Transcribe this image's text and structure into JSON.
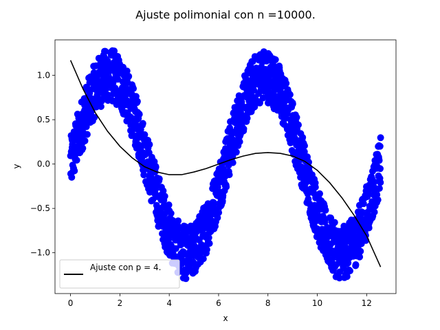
{
  "chart_data": {
    "type": "scatter",
    "title": "Ajuste polimonial con n =10000.",
    "xlabel": "x",
    "ylabel": "y",
    "xlim": [
      -0.63,
      13.19
    ],
    "ylim": [
      -1.46,
      1.4
    ],
    "xticks": [
      0,
      2,
      4,
      6,
      8,
      10,
      12
    ],
    "xtick_labels": [
      "0",
      "2",
      "4",
      "6",
      "8",
      "10",
      "12"
    ],
    "yticks": [
      -1.0,
      -0.5,
      0.0,
      0.5,
      1.0
    ],
    "ytick_labels": [
      "−1.0",
      "−0.5",
      "0.0",
      "0.5",
      "1.0"
    ],
    "grid": false,
    "legend": {
      "position": "lower-left",
      "entries": [
        "Ajuste con p = 4."
      ]
    },
    "series": [
      {
        "kind": "scatter",
        "color": "#0000ff",
        "x_range": [
          0,
          12.566
        ],
        "n": 10000,
        "envelope": "sin(x) ± 0.3"
      },
      {
        "kind": "line",
        "name": "Ajuste con p = 4.",
        "color": "#000000",
        "x": [
          0,
          0.5,
          1,
          1.5,
          2,
          2.5,
          3,
          3.5,
          4,
          4.5,
          5,
          5.5,
          6,
          6.5,
          7,
          7.5,
          8,
          8.5,
          9,
          9.5,
          10,
          10.5,
          11,
          11.5,
          12,
          12.566
        ],
        "y": [
          1.17,
          0.85,
          0.58,
          0.37,
          0.2,
          0.07,
          -0.03,
          -0.09,
          -0.12,
          -0.12,
          -0.09,
          -0.05,
          0.0,
          0.05,
          0.09,
          0.12,
          0.13,
          0.12,
          0.09,
          0.03,
          -0.07,
          -0.21,
          -0.38,
          -0.58,
          -0.81,
          -1.16
        ]
      }
    ]
  }
}
